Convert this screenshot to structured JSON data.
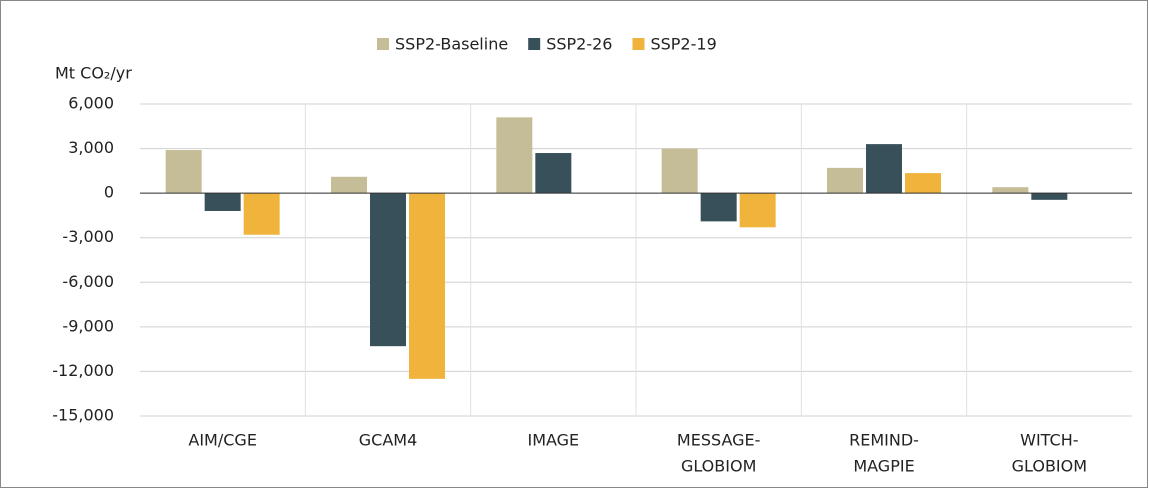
{
  "chart_data": {
    "type": "bar",
    "ylabel": "Mt CO₂/yr",
    "categories": [
      [
        "AIM/CGE"
      ],
      [
        "GCAM4"
      ],
      [
        "IMAGE"
      ],
      [
        "MESSAGE-",
        "GLOBIOM"
      ],
      [
        "REMIND-",
        "MAGPIE"
      ],
      [
        "WITCH-",
        "GLOBIOM"
      ]
    ],
    "series": [
      {
        "name": "SSP2-Baseline",
        "color": "#c4bd97",
        "values": [
          2900,
          1100,
          5100,
          3000,
          1700,
          400
        ]
      },
      {
        "name": "SSP2-26",
        "color": "#37505a",
        "values": [
          -1200,
          -10300,
          2700,
          -1900,
          3300,
          -450
        ]
      },
      {
        "name": "SSP2-19",
        "color": "#f0b43c",
        "values": [
          -2800,
          -12500,
          null,
          -2300,
          1350,
          null
        ]
      }
    ],
    "ylim": [
      -15000,
      6000
    ],
    "yticks": [
      {
        "value": 6000,
        "label": "6,000"
      },
      {
        "value": 3000,
        "label": "3,000"
      },
      0,
      {
        "value": -3000,
        "label": "-3,000"
      },
      {
        "value": -6000,
        "label": "-6,000"
      },
      {
        "value": -9000,
        "label": "-9,000"
      },
      {
        "value": -12000,
        "label": "-12,000"
      },
      {
        "value": -15000,
        "label": "-15,000"
      }
    ],
    "grid": true,
    "legend": "top"
  }
}
